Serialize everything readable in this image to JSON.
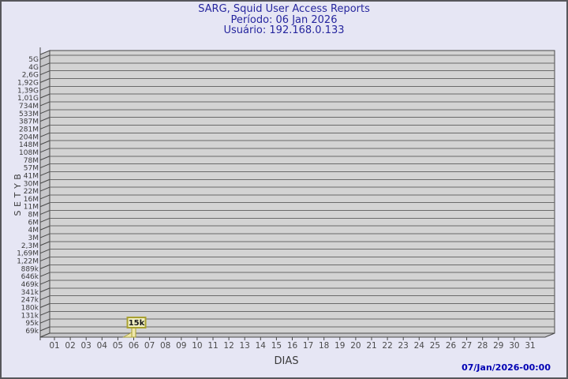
{
  "colors": {
    "background": "#e6e6f4",
    "frame_border": "#57575b",
    "title_text": "#26269e",
    "plot_fill": "#d3d3d3",
    "wall_fill": "#c7c7ca",
    "grid_line": "#6a6a6a",
    "frame_line": "#484848",
    "axis_text": "#3a3a3a",
    "tick_text": "#4a4a4a",
    "timestamp_text": "#0000b4",
    "bar_fill": "#efe7ad",
    "bar_stroke": "#a8a030",
    "annotation_fill": "#f2f0c2",
    "annotation_border": "#a8a030",
    "annotation_text": "#1a1a1a"
  },
  "chart_data": {
    "type": "bar",
    "title": "SARG, Squid User Access Reports",
    "subtitle_period": "Período: 06 Jan 2026",
    "subtitle_user": "Usuário: 192.168.0.133",
    "xlabel": "DIAS",
    "ylabel": "BYTES",
    "y_scale": "log",
    "y_tick_labels": [
      "5G",
      "4G",
      "2,6G",
      "1,92G",
      "1,39G",
      "1,01G",
      "734M",
      "533M",
      "387M",
      "281M",
      "204M",
      "148M",
      "108M",
      "78M",
      "57M",
      "41M",
      "30M",
      "22M",
      "16M",
      "11M",
      "8M",
      "6M",
      "4M",
      "3M",
      "2,3M",
      "1,69M",
      "1,22M",
      "889k",
      "646k",
      "469k",
      "341k",
      "247k",
      "180k",
      "131k",
      "95k",
      "69k"
    ],
    "x_tick_labels": [
      "01",
      "02",
      "03",
      "04",
      "05",
      "06",
      "07",
      "08",
      "09",
      "10",
      "11",
      "12",
      "13",
      "14",
      "15",
      "16",
      "17",
      "18",
      "19",
      "20",
      "21",
      "22",
      "23",
      "24",
      "25",
      "26",
      "27",
      "28",
      "29",
      "30",
      "31"
    ],
    "bars": [
      {
        "category": "06",
        "value": 15000,
        "label": "15k"
      }
    ],
    "timestamp": "07/Jan/2026-00:00"
  }
}
